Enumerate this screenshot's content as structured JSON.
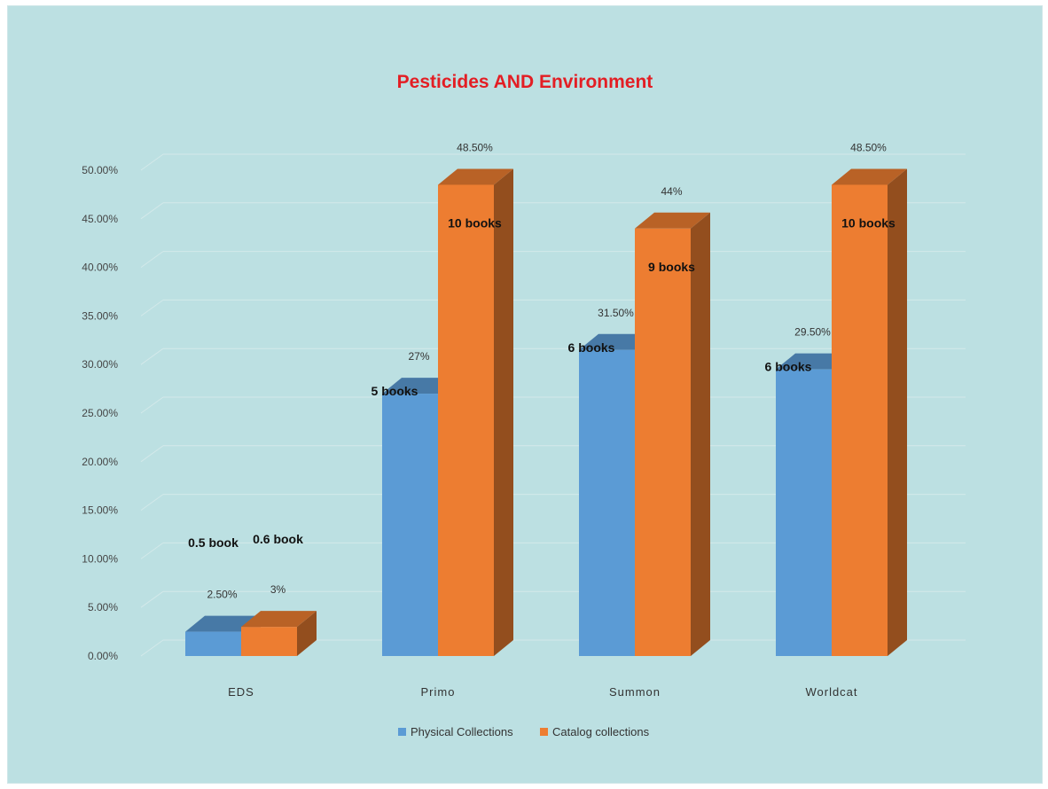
{
  "chart_data": {
    "type": "bar",
    "title": "Pesticides AND Environment",
    "categories": [
      "EDS",
      "Primo",
      "Summon",
      "Worldcat"
    ],
    "series": [
      {
        "name": "Physical Collections",
        "color": "#5b9bd5",
        "values": [
          2.5,
          27,
          31.5,
          29.5
        ],
        "value_labels": [
          "2.50%",
          "27%",
          "31.50%",
          "29.50%"
        ],
        "book_labels": [
          "0.5 book",
          "5 books",
          "6 books",
          "6 books"
        ]
      },
      {
        "name": "Catalog collections",
        "color": "#ed7d31",
        "values": [
          3,
          48.5,
          44,
          48.5
        ],
        "value_labels": [
          "3%",
          "48.50%",
          "44%",
          "48.50%"
        ],
        "book_labels": [
          "0.6 book",
          "10 books",
          "9 books",
          "10 books"
        ]
      }
    ],
    "y_ticks": [
      "0.00%",
      "5.00%",
      "10.00%",
      "15.00%",
      "20.00%",
      "25.00%",
      "30.00%",
      "35.00%",
      "40.00%",
      "45.00%",
      "50.00%"
    ],
    "ylim": [
      0,
      50
    ],
    "grid": true,
    "legend_position": "bottom",
    "projection": "3d",
    "title_color": "#e31e24"
  }
}
